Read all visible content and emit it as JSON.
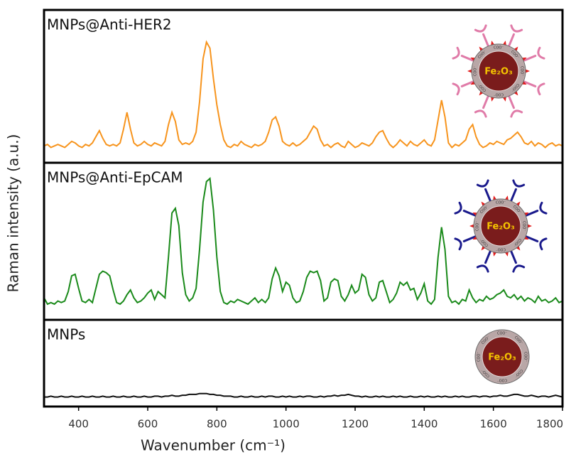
{
  "chart_data": {
    "type": "line",
    "xlabel": "Wavenumber (cm⁻¹)",
    "ylabel": "Raman intensity (a.u.)",
    "particle_label": "Fe₂O₃",
    "shell_label": "COO⁻",
    "xlim": [
      300,
      1800
    ],
    "xticks": [
      400,
      600,
      800,
      1000,
      1200,
      1400,
      1600,
      1800
    ],
    "x": [
      300,
      310,
      320,
      330,
      340,
      350,
      360,
      370,
      380,
      390,
      400,
      410,
      420,
      430,
      440,
      450,
      460,
      470,
      480,
      490,
      500,
      510,
      520,
      530,
      540,
      550,
      560,
      570,
      580,
      590,
      600,
      610,
      620,
      630,
      640,
      650,
      660,
      670,
      680,
      690,
      700,
      710,
      720,
      730,
      740,
      750,
      760,
      770,
      780,
      790,
      800,
      810,
      820,
      830,
      840,
      850,
      860,
      870,
      880,
      890,
      900,
      910,
      920,
      930,
      940,
      950,
      960,
      970,
      980,
      990,
      1000,
      1010,
      1020,
      1030,
      1040,
      1050,
      1060,
      1070,
      1080,
      1090,
      1100,
      1110,
      1120,
      1130,
      1140,
      1150,
      1160,
      1170,
      1180,
      1190,
      1200,
      1210,
      1220,
      1230,
      1240,
      1250,
      1260,
      1270,
      1280,
      1290,
      1300,
      1310,
      1320,
      1330,
      1340,
      1350,
      1360,
      1370,
      1380,
      1390,
      1400,
      1410,
      1420,
      1430,
      1440,
      1450,
      1460,
      1470,
      1480,
      1490,
      1500,
      1510,
      1520,
      1530,
      1540,
      1550,
      1560,
      1570,
      1580,
      1590,
      1600,
      1610,
      1620,
      1630,
      1640,
      1650,
      1660,
      1670,
      1680,
      1690,
      1700,
      1710,
      1720,
      1730,
      1740,
      1750,
      1760,
      1770,
      1780,
      1790,
      1800
    ],
    "series": [
      {
        "name": "MNPs@Anti-HER2",
        "color": "#f7941d",
        "ylim": [
          0,
          100
        ],
        "values": [
          11,
          12,
          10,
          11,
          12,
          11,
          10,
          12,
          14,
          13,
          11,
          10,
          12,
          11,
          13,
          17,
          21,
          16,
          12,
          11,
          12,
          11,
          13,
          22,
          33,
          22,
          13,
          11,
          12,
          14,
          12,
          11,
          13,
          12,
          11,
          14,
          25,
          33,
          27,
          15,
          12,
          13,
          12,
          14,
          20,
          40,
          68,
          79,
          75,
          55,
          38,
          25,
          15,
          11,
          10,
          12,
          11,
          14,
          12,
          11,
          10,
          12,
          11,
          12,
          14,
          20,
          28,
          30,
          24,
          14,
          12,
          11,
          13,
          11,
          12,
          14,
          16,
          20,
          24,
          22,
          15,
          11,
          12,
          10,
          12,
          13,
          11,
          10,
          14,
          12,
          10,
          11,
          13,
          12,
          11,
          13,
          17,
          20,
          21,
          16,
          12,
          10,
          12,
          15,
          13,
          11,
          14,
          12,
          11,
          13,
          15,
          12,
          11,
          15,
          28,
          41,
          30,
          13,
          10,
          12,
          11,
          13,
          15,
          22,
          25,
          17,
          12,
          10,
          11,
          13,
          12,
          14,
          13,
          12,
          15,
          16,
          18,
          20,
          17,
          13,
          12,
          14,
          11,
          13,
          12,
          10,
          12,
          13,
          11,
          12,
          11
        ]
      },
      {
        "name": "MNPs@Anti-EpCAM",
        "color": "#1a8a1a",
        "ylim": [
          0,
          100
        ],
        "values": [
          14,
          10,
          11,
          10,
          12,
          11,
          12,
          18,
          28,
          29,
          20,
          12,
          11,
          13,
          11,
          20,
          29,
          31,
          30,
          28,
          19,
          11,
          10,
          12,
          16,
          19,
          14,
          11,
          12,
          14,
          17,
          19,
          13,
          18,
          16,
          14,
          40,
          68,
          71,
          60,
          30,
          16,
          12,
          14,
          20,
          45,
          75,
          88,
          90,
          70,
          40,
          18,
          11,
          10,
          12,
          11,
          13,
          12,
          11,
          10,
          12,
          14,
          11,
          13,
          11,
          14,
          26,
          33,
          28,
          18,
          24,
          22,
          14,
          11,
          12,
          18,
          27,
          31,
          30,
          31,
          25,
          12,
          14,
          24,
          26,
          25,
          15,
          12,
          16,
          22,
          17,
          19,
          29,
          27,
          16,
          12,
          14,
          24,
          25,
          18,
          11,
          13,
          17,
          24,
          22,
          24,
          19,
          20,
          13,
          17,
          23,
          12,
          10,
          13,
          40,
          59,
          45,
          15,
          11,
          12,
          10,
          13,
          12,
          19,
          14,
          11,
          13,
          12,
          15,
          13,
          14,
          16,
          17,
          19,
          15,
          14,
          16,
          13,
          15,
          12,
          14,
          13,
          11,
          15,
          12,
          13,
          11,
          12,
          14,
          11,
          12
        ]
      },
      {
        "name": "MNPs",
        "color": "#111111",
        "ylim": [
          0,
          100
        ],
        "values": [
          11,
          11,
          12,
          11,
          11,
          12,
          11,
          11,
          12,
          11,
          11,
          12,
          11,
          11,
          12,
          11,
          11,
          12,
          11,
          11,
          12,
          11,
          11,
          12,
          11,
          11,
          12,
          11,
          11,
          12,
          11,
          11,
          12,
          12,
          11,
          12,
          12,
          13,
          12,
          12,
          13,
          13,
          14,
          14,
          14,
          15,
          15,
          15,
          14,
          14,
          13,
          13,
          12,
          12,
          12,
          11,
          11,
          12,
          11,
          11,
          12,
          11,
          11,
          12,
          11,
          12,
          12,
          11,
          11,
          12,
          11,
          12,
          11,
          11,
          12,
          11,
          12,
          12,
          11,
          11,
          12,
          11,
          12,
          12,
          13,
          12,
          13,
          13,
          14,
          13,
          12,
          12,
          11,
          12,
          11,
          11,
          12,
          11,
          12,
          11,
          11,
          12,
          11,
          12,
          11,
          11,
          12,
          11,
          11,
          12,
          11,
          12,
          11,
          11,
          12,
          11,
          12,
          11,
          11,
          12,
          11,
          12,
          11,
          11,
          12,
          12,
          11,
          12,
          12,
          11,
          12,
          12,
          13,
          12,
          12,
          13,
          14,
          14,
          13,
          12,
          12,
          13,
          12,
          11,
          12,
          12,
          11,
          12,
          13,
          12,
          11
        ]
      }
    ]
  }
}
